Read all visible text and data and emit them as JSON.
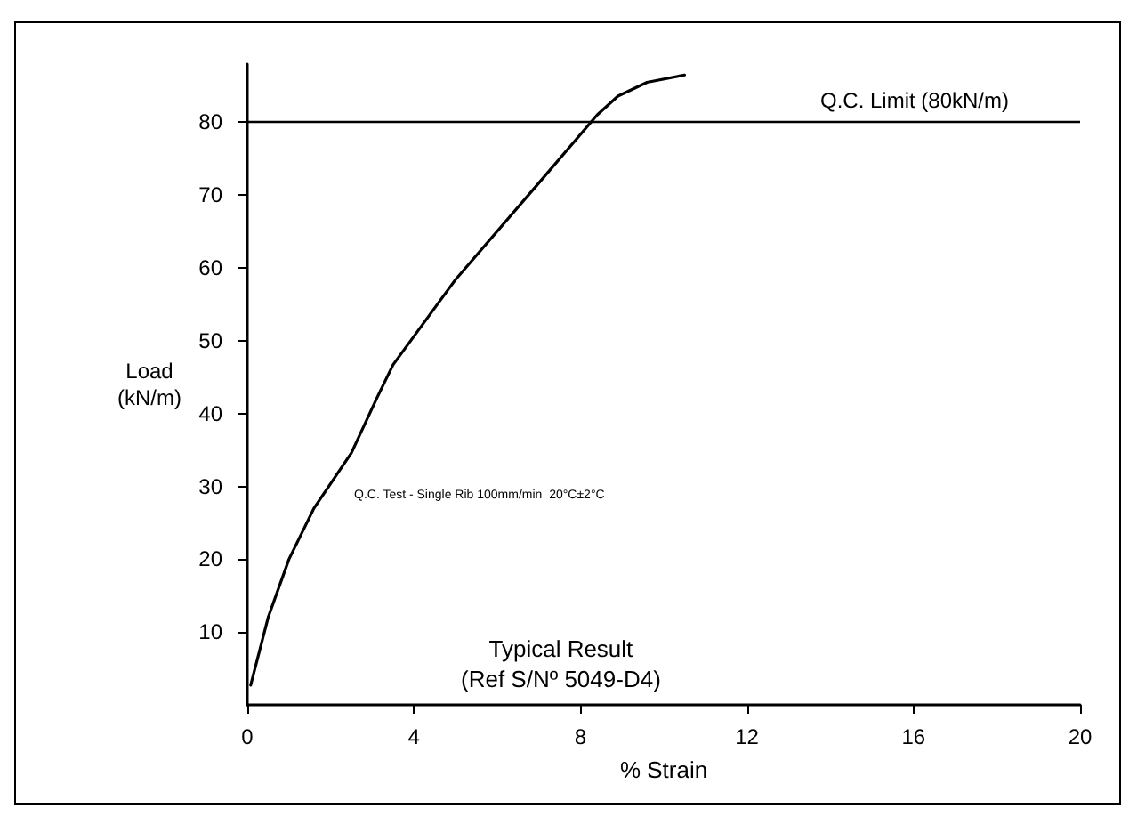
{
  "chart_data": {
    "type": "line",
    "xlabel": "% Strain",
    "ylabel": "Load\n(kN/m)",
    "x": [
      0.08,
      0.5,
      1.0,
      1.6,
      2.5,
      3.1,
      3.5,
      5.0,
      6.9,
      8.4,
      8.9,
      9.6,
      10.5
    ],
    "series": [
      {
        "color": "#000000",
        "values": [
          2.7,
          12,
          20,
          27,
          34.6,
          42,
          46.7,
          58.4,
          71,
          81,
          83.6,
          85.5,
          86.5
        ]
      }
    ],
    "xlim": [
      0,
      20
    ],
    "xticks": [
      0,
      4,
      8,
      12,
      16,
      20
    ],
    "ylim": [
      0,
      88
    ],
    "yticks": [
      10,
      20,
      30,
      40,
      50,
      60,
      70,
      80
    ],
    "grid": false,
    "marker": "none",
    "line_style": "solid",
    "ref_lines": [
      {
        "axis": "y",
        "value": 80,
        "label": "Q.C. Limit (80kN/m)",
        "color": "#000000",
        "line_style": "solid"
      }
    ],
    "annotations": [
      "Q.C. Test - Single Rib 100mm/min  20°C±2°C",
      "Typical Result\n(Ref S/Nº 5049-D4)"
    ]
  }
}
